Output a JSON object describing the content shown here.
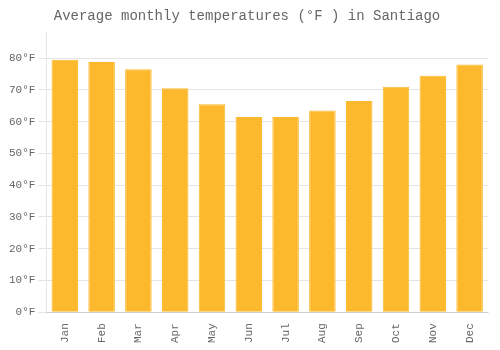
{
  "chart_data": {
    "type": "bar",
    "title": "Average monthly temperatures (°F ) in Santiago",
    "categories": [
      "Jan",
      "Feb",
      "Mar",
      "Apr",
      "May",
      "Jun",
      "Jul",
      "Aug",
      "Sep",
      "Oct",
      "Nov",
      "Dec"
    ],
    "values": [
      79.5,
      78.8,
      76.5,
      70.5,
      65.5,
      61.5,
      61.5,
      63.5,
      66.5,
      71.0,
      74.5,
      78.0
    ],
    "color": "#FDB92E",
    "ylim": [
      0,
      88
    ],
    "yticks": [
      {
        "value": 0,
        "label": "0°F"
      },
      {
        "value": 10,
        "label": "10°F"
      },
      {
        "value": 20,
        "label": "20°F"
      },
      {
        "value": 30,
        "label": "30°F"
      },
      {
        "value": 40,
        "label": "40°F"
      },
      {
        "value": 50,
        "label": "50°F"
      },
      {
        "value": 60,
        "label": "60°F"
      },
      {
        "value": 70,
        "label": "70°F"
      },
      {
        "value": 80,
        "label": "80°F"
      }
    ],
    "grid": true
  }
}
